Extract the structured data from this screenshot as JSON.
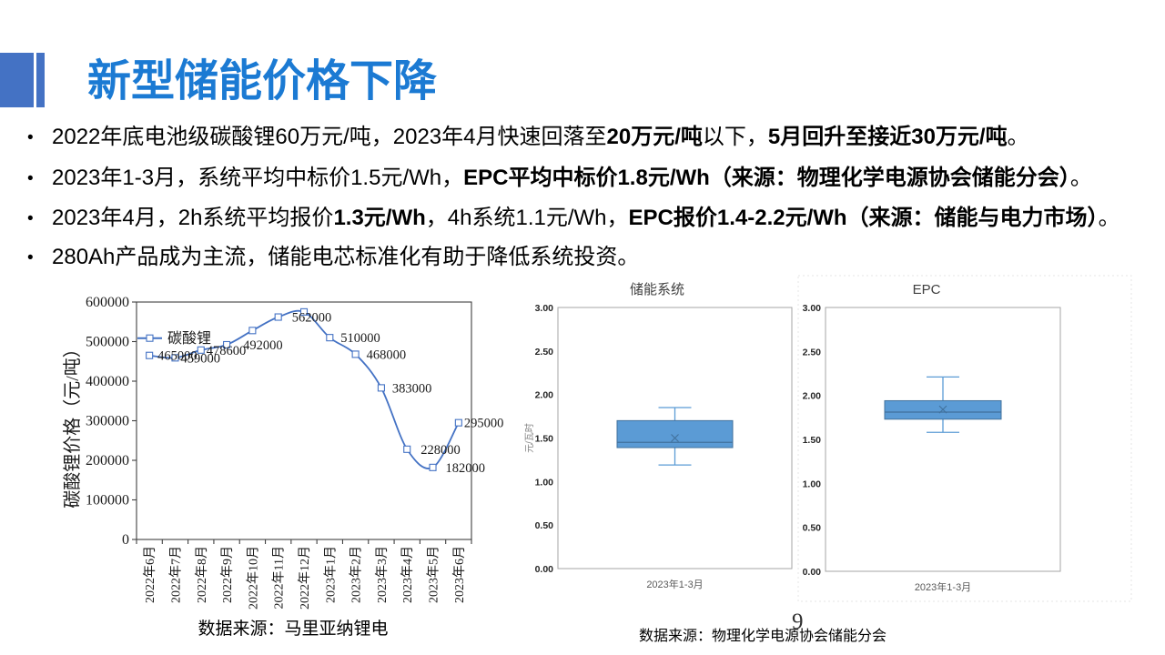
{
  "slide": {
    "title": "新型储能价格下降",
    "page_number": "9",
    "accent_color": "#1B7AD3",
    "bullets": [
      [
        {
          "t": "2022年底电池级碳酸锂60万元/吨，2023年4月快速回落至",
          "b": false
        },
        {
          "t": "20万元/吨",
          "b": true
        },
        {
          "t": "以下，",
          "b": false
        },
        {
          "t": "5月回升至接近30万元/吨",
          "b": true
        },
        {
          "t": "。",
          "b": false
        }
      ],
      [
        {
          "t": "2023年1-3月，系统平均中标价1.5元/Wh，",
          "b": false
        },
        {
          "t": "EPC平均中标价1.8元/Wh",
          "b": true
        },
        {
          "t": "（来源：物理化学电源协会储能分会）",
          "b": true
        },
        {
          "t": "。",
          "b": false
        }
      ],
      [
        {
          "t": "2023年4月，2h系统平均报价",
          "b": false
        },
        {
          "t": "1.3元/Wh",
          "b": true
        },
        {
          "t": "，4h系统1.1元/Wh，",
          "b": false
        },
        {
          "t": "EPC报价1.4-2.2元/Wh",
          "b": true
        },
        {
          "t": "（来源：储能与电力市场）",
          "b": true
        },
        {
          "t": "。",
          "b": false
        }
      ],
      [
        {
          "t": "280Ah产品成为主流，储能电芯标准化有助于降低系统投资。",
          "b": false
        }
      ]
    ]
  },
  "chart_data": [
    {
      "type": "line",
      "name": "lithium-carbonate-price",
      "legend": "碳酸锂",
      "ylabel": "碳酸锂价格（元/吨）",
      "source_caption": "数据来源：马里亚纳锂电",
      "x": [
        "2022年6月",
        "2022年7月",
        "2022年8月",
        "2022年9月",
        "2022年10月",
        "2022年11月",
        "2022年12月",
        "2023年1月",
        "2023年2月",
        "2023年3月",
        "2023年4月",
        "2023年5月",
        "2023年6月"
      ],
      "values": [
        465000,
        459000,
        478600,
        492000,
        528000,
        562000,
        575000,
        510000,
        468000,
        383000,
        228000,
        182000,
        295000
      ],
      "point_labels": [
        "465000",
        "459000",
        "478600",
        "492000",
        "",
        "562000",
        "",
        "510000",
        "468000",
        "383000",
        "228000",
        "182000",
        "295000"
      ],
      "ylim": [
        0,
        600000
      ],
      "ytick_step": 100000,
      "line_color": "#4472C4"
    },
    {
      "type": "box",
      "name": "storage-system-price",
      "title": "储能系统",
      "ylabel": "元/瓦时",
      "category": "2023年1-3月",
      "whisker_low": 1.19,
      "q1": 1.39,
      "median": 1.45,
      "mean": 1.5,
      "q3": 1.7,
      "whisker_high": 1.85,
      "ylim": [
        0,
        3
      ],
      "ytick_step": 0.5,
      "box_fill": "#5B9BD5",
      "box_border": "#41719C"
    },
    {
      "type": "box",
      "name": "epc-price",
      "title": "EPC",
      "ylabel": "",
      "category": "2023年1-3月",
      "whisker_low": 1.58,
      "q1": 1.73,
      "median": 1.81,
      "mean": 1.84,
      "q3": 1.94,
      "whisker_high": 2.21,
      "ylim": [
        0,
        3
      ],
      "ytick_step": 0.5,
      "box_fill": "#5B9BD5",
      "box_border": "#41719C"
    }
  ],
  "captions": {
    "right": "数据来源：物理化学电源协会储能分会"
  }
}
